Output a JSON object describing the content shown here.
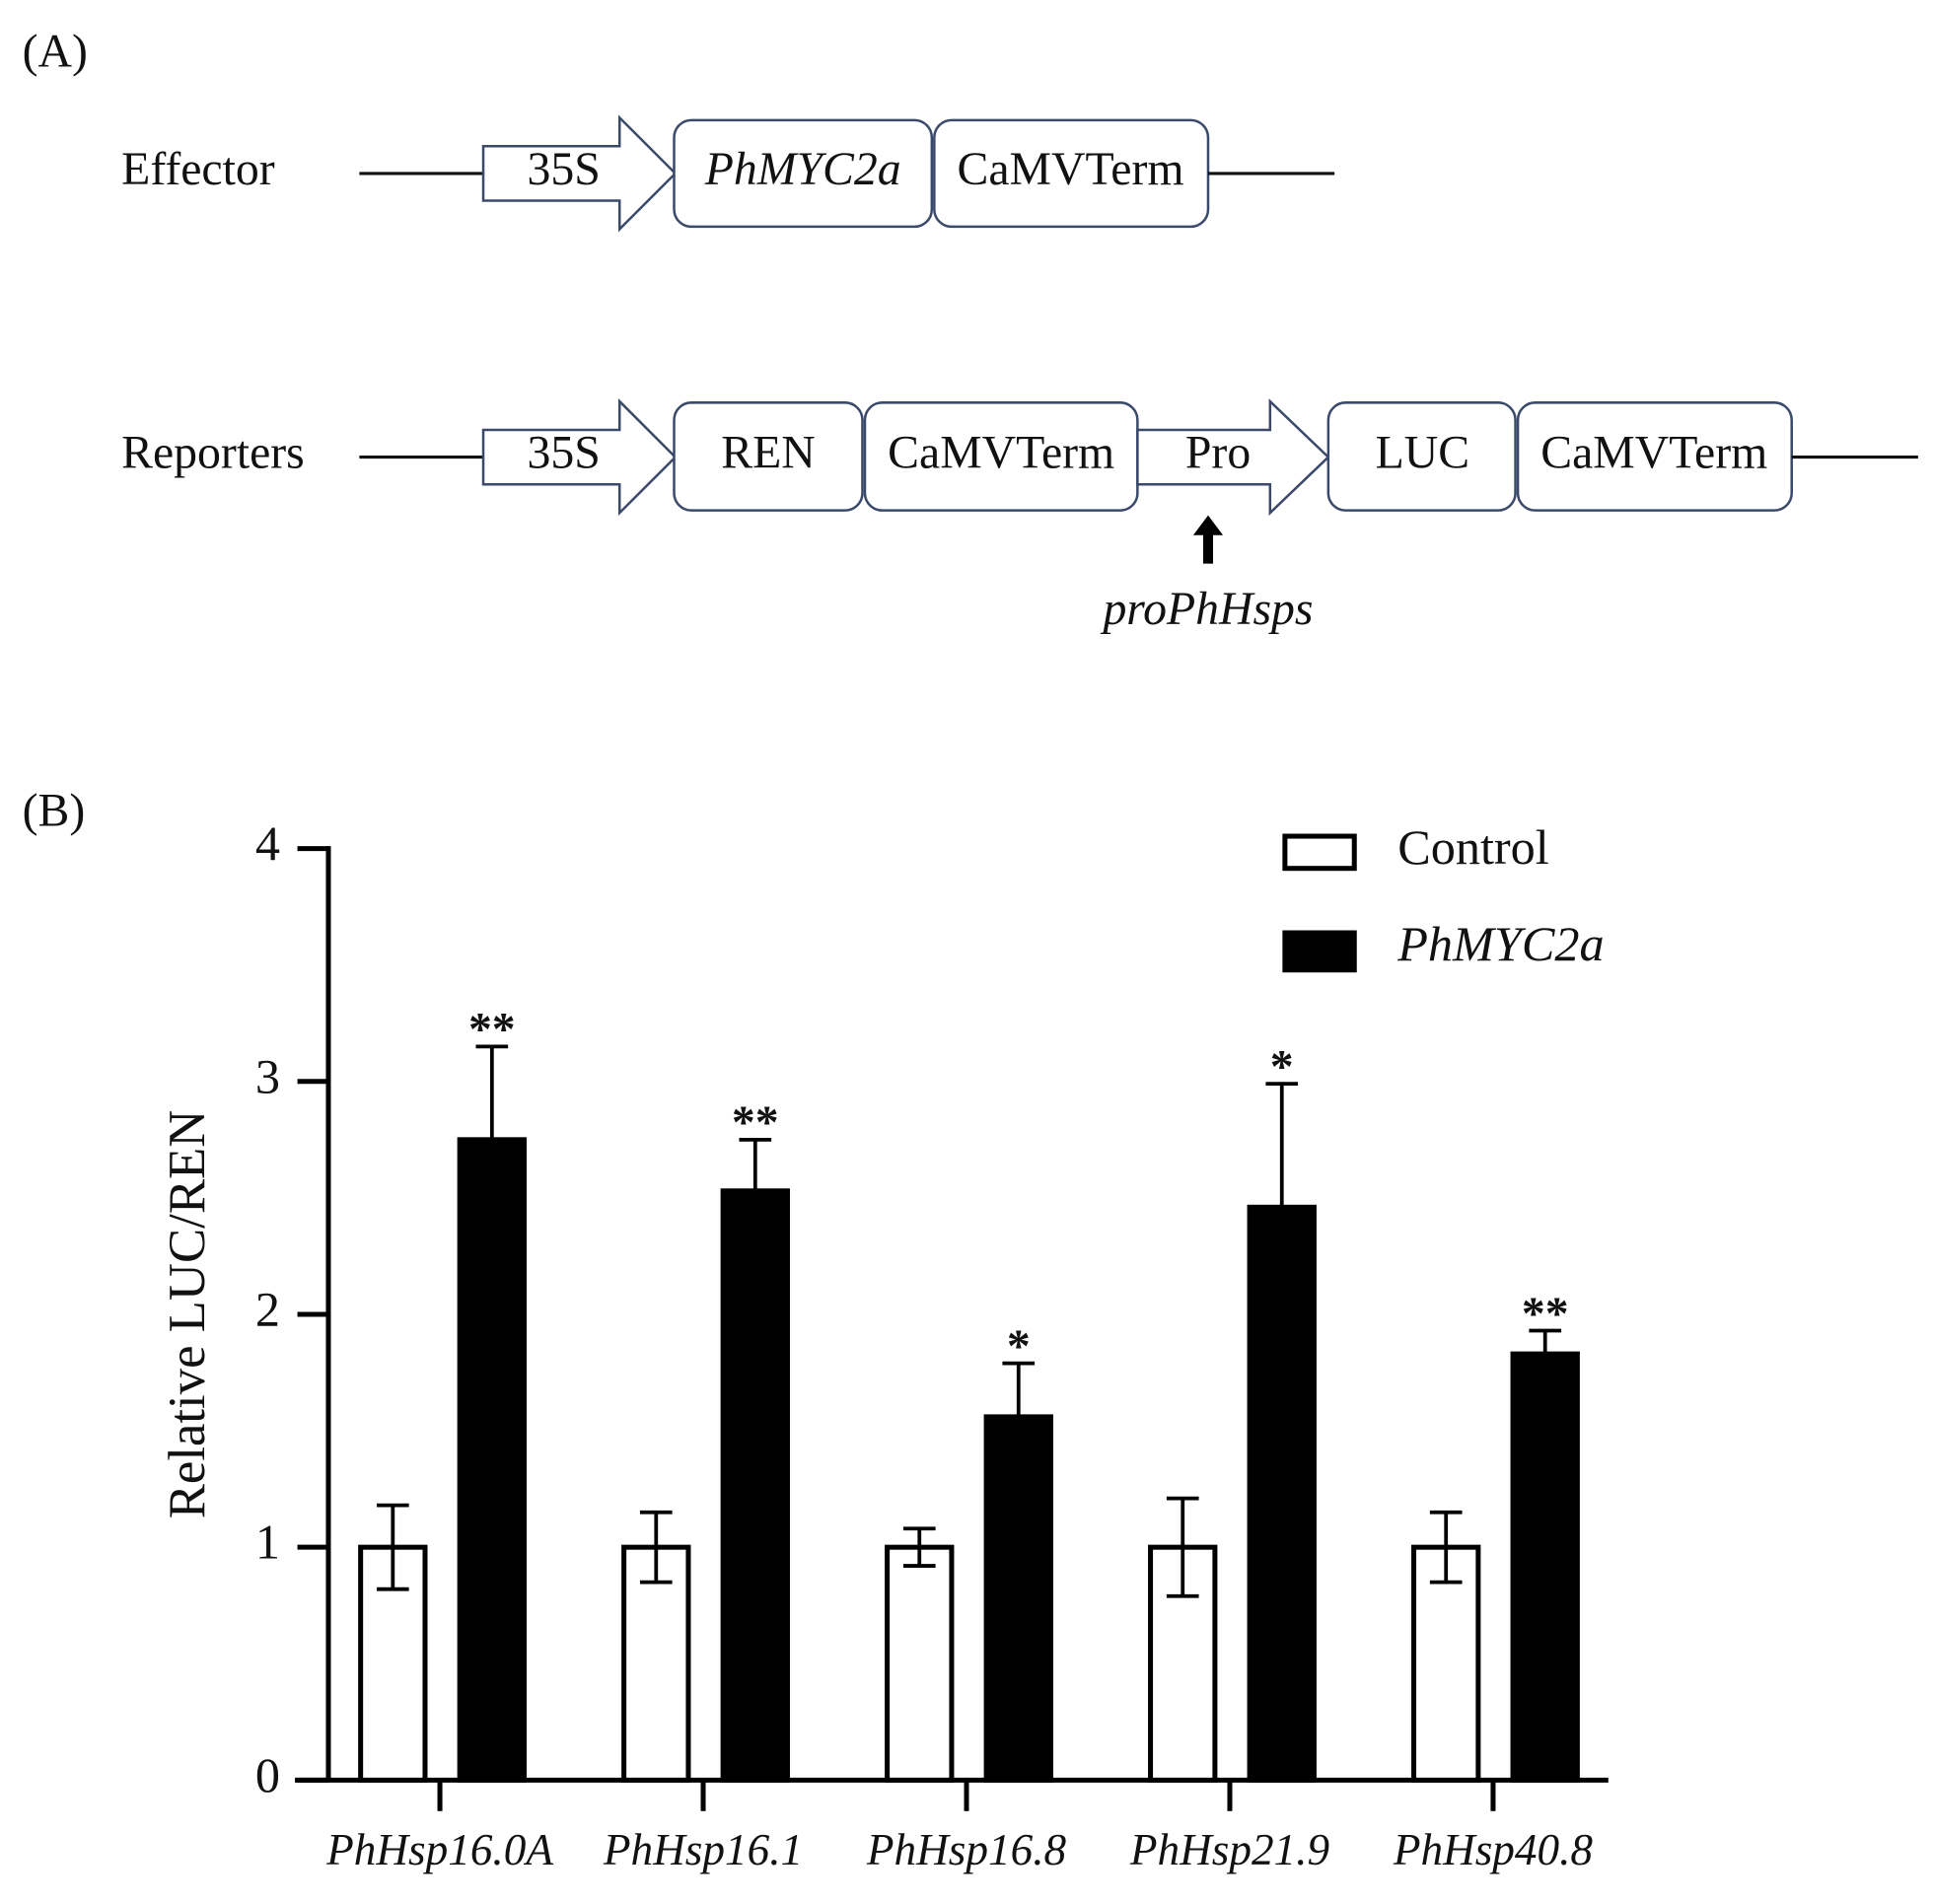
{
  "panel_a": {
    "label": "(A)",
    "effector": {
      "name": "Effector",
      "promoter": "35S",
      "gene": "PhMYC2a",
      "terminator": "CaMVTerm"
    },
    "reporters": {
      "name": "Reporters",
      "promoter": "35S",
      "gene": "REN",
      "terminator": "CaMVTerm",
      "test_promoter": "Pro",
      "reporter_gene": "LUC",
      "reporter_terminator": "CaMVTerm",
      "arrow_label": "proPhHsps"
    }
  },
  "chart_data": {
    "type": "bar",
    "panel_label": "(B)",
    "ylabel": "Relative LUC/REN",
    "categories": [
      "PhHsp16.0A",
      "PhHsp16.1",
      "PhHsp16.8",
      "PhHsp21.9",
      "PhHsp40.8"
    ],
    "series": [
      {
        "name": "Control",
        "color": "#ffffff",
        "values": [
          1,
          1,
          1,
          1,
          1
        ],
        "errors": [
          0.18,
          0.15,
          0.08,
          0.21,
          0.15
        ]
      },
      {
        "name": "PhMYC2a",
        "color": "#000000",
        "values": [
          2.75,
          2.53,
          1.56,
          2.46,
          1.83
        ],
        "errors": [
          0.4,
          0.22,
          0.23,
          0.53,
          0.1
        ],
        "significance": [
          "**",
          "**",
          "*",
          "*",
          "**"
        ]
      }
    ],
    "ylim": [
      0,
      4
    ],
    "yticks": [
      0,
      1,
      2,
      3,
      4
    ],
    "grid": false,
    "legend": "top-right"
  }
}
